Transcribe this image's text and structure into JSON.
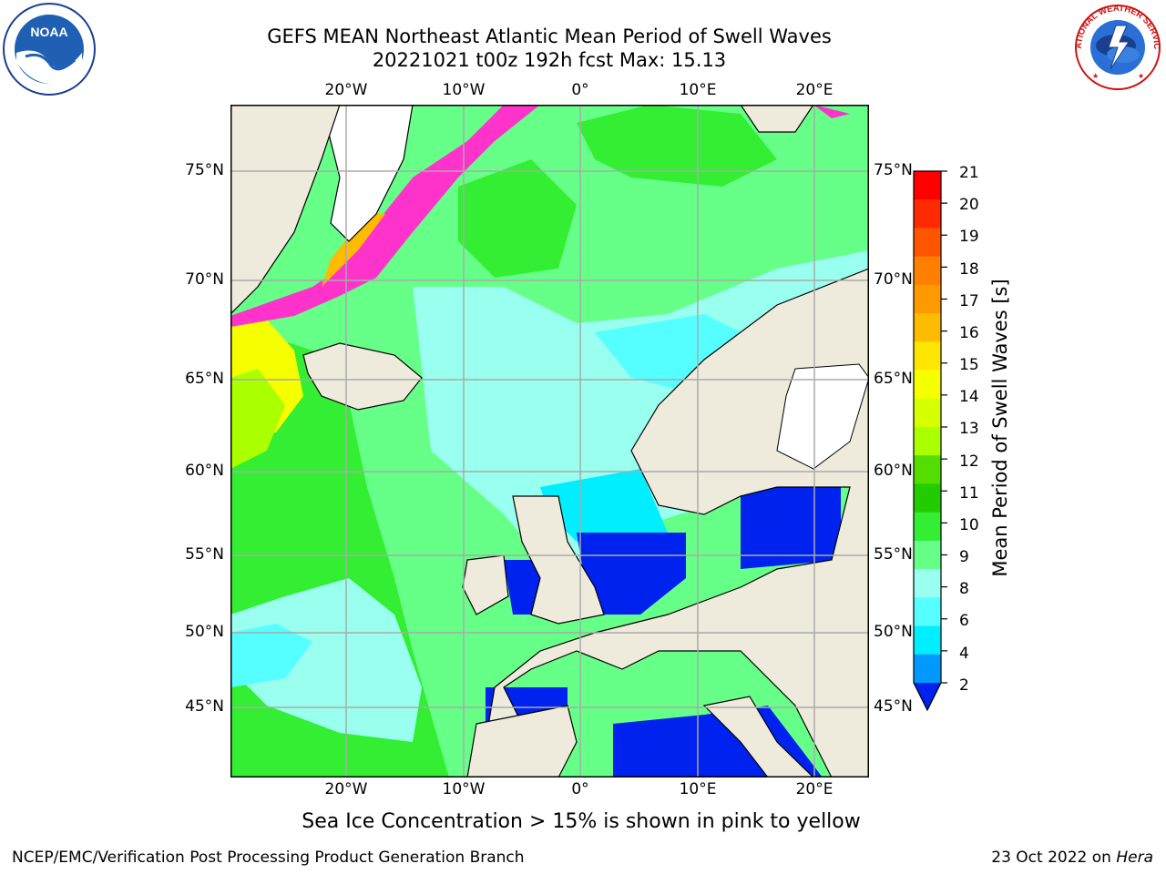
{
  "header": {
    "title_line1": "GEFS MEAN Northeast Atlantic Mean Period of Swell Waves",
    "title_line2": "20221021 t00z 192h fcst   Max: 15.13"
  },
  "map": {
    "lon_labels": [
      "20°W",
      "10°W",
      "0°",
      "10°E",
      "20°E"
    ],
    "lat_labels_left": [
      "75°N",
      "70°N",
      "65°N",
      "60°N",
      "55°N",
      "50°N",
      "45°N"
    ],
    "lat_labels_right": [
      "75°N",
      "70°N",
      "65°N",
      "60°N",
      "55°N",
      "50°N",
      "45°N"
    ],
    "land_color": "#efebdc",
    "ice_note_colors": [
      "#ff33cc",
      "#ffff00"
    ]
  },
  "colorbar": {
    "label": "Mean Period of Swell Waves [s]",
    "ticks": [
      "21",
      "20",
      "19",
      "18",
      "17",
      "16",
      "15",
      "14",
      "13",
      "12",
      "11",
      "10",
      "9",
      "8",
      "6",
      "4",
      "2"
    ],
    "colors_top_to_bottom": [
      "#ff0000",
      "#ff2a00",
      "#ff5500",
      "#ff7f00",
      "#ff9900",
      "#ffbb00",
      "#ffe600",
      "#f5ff00",
      "#d6ff00",
      "#aaff00",
      "#55dd00",
      "#22cc00",
      "#33ee33",
      "#66ff88",
      "#99ffee",
      "#55ffff",
      "#00eeff",
      "#0099ff",
      "#0022ee"
    ]
  },
  "footer": {
    "note": "Sea Ice Concentration > 15% is shown in pink to yellow",
    "credit_left": "NCEP/EMC/Verification Post Processing Product Generation Branch",
    "credit_right_date": "23 Oct 2022 on ",
    "credit_right_host": "Hera"
  },
  "logos": {
    "noaa_text": "NOAA",
    "nws_text": "NATIONAL WEATHER SERVICE"
  }
}
